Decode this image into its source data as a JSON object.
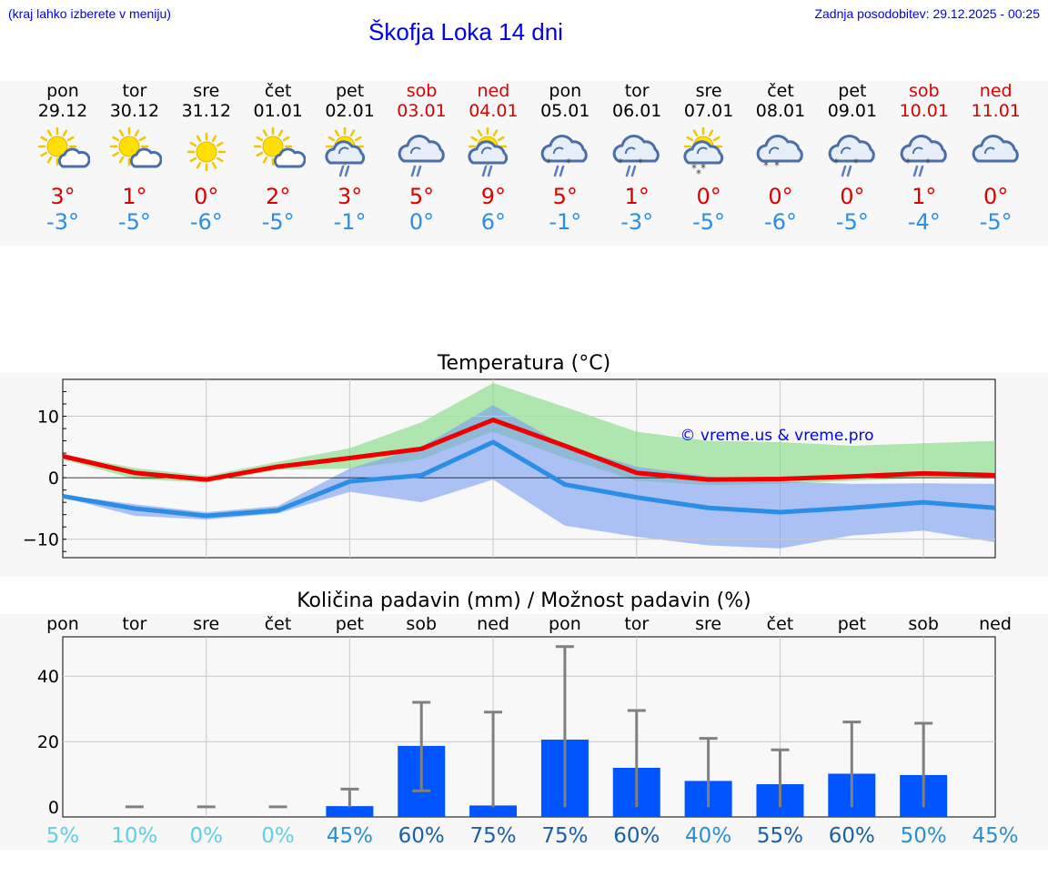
{
  "header": {
    "hint": "(kraj lahko izberete v meniju)",
    "updated": "Zadnja posodobitev: 29.12.2025 - 00:25",
    "title": "Škofja Loka 14 dni"
  },
  "days": [
    {
      "dn": "pon",
      "dt": "29.12",
      "weekend": false,
      "icon": "sun-cloud",
      "tmax": "3°",
      "tmin": "-3°"
    },
    {
      "dn": "tor",
      "dt": "30.12",
      "weekend": false,
      "icon": "sun-cloud",
      "tmax": "1°",
      "tmin": "-5°"
    },
    {
      "dn": "sre",
      "dt": "31.12",
      "weekend": false,
      "icon": "sun",
      "tmax": "0°",
      "tmin": "-6°"
    },
    {
      "dn": "čet",
      "dt": "01.01",
      "weekend": false,
      "icon": "sun-cloud",
      "tmax": "2°",
      "tmin": "-5°"
    },
    {
      "dn": "pet",
      "dt": "02.01",
      "weekend": false,
      "icon": "sun-cloud-rain",
      "tmax": "3°",
      "tmin": "-1°"
    },
    {
      "dn": "sob",
      "dt": "03.01",
      "weekend": true,
      "icon": "cloud-rain",
      "tmax": "5°",
      "tmin": "0°"
    },
    {
      "dn": "ned",
      "dt": "04.01",
      "weekend": true,
      "icon": "sun-cloud-rain",
      "tmax": "9°",
      "tmin": "6°"
    },
    {
      "dn": "pon",
      "dt": "05.01",
      "weekend": false,
      "icon": "cloud-sleet",
      "tmax": "5°",
      "tmin": "-1°"
    },
    {
      "dn": "tor",
      "dt": "06.01",
      "weekend": false,
      "icon": "cloud-sleet",
      "tmax": "1°",
      "tmin": "-3°"
    },
    {
      "dn": "sre",
      "dt": "07.01",
      "weekend": false,
      "icon": "sun-cloud-snow",
      "tmax": "0°",
      "tmin": "-5°"
    },
    {
      "dn": "čet",
      "dt": "08.01",
      "weekend": false,
      "icon": "cloud-snow",
      "tmax": "0°",
      "tmin": "-6°"
    },
    {
      "dn": "pet",
      "dt": "09.01",
      "weekend": false,
      "icon": "cloud-sleet",
      "tmax": "0°",
      "tmin": "-5°"
    },
    {
      "dn": "sob",
      "dt": "10.01",
      "weekend": true,
      "icon": "cloud-sleet",
      "tmax": "1°",
      "tmin": "-4°"
    },
    {
      "dn": "ned",
      "dt": "11.01",
      "weekend": true,
      "icon": "cloud",
      "tmax": "0°",
      "tmin": "-5°"
    }
  ],
  "colors": {
    "max": "#ee0000",
    "min": "#2a8ee6",
    "bar": "#0055ff",
    "err": "#808080",
    "band_green": "#7ed87e",
    "band_blue": "#7a9cf0"
  },
  "chart_data": [
    {
      "type": "line",
      "title": "Temperatura (°C)",
      "x": [
        0,
        1,
        2,
        3,
        4,
        5,
        6,
        7,
        8,
        9,
        10,
        11,
        12,
        13
      ],
      "ylim": [
        -13,
        16
      ],
      "yticks": [
        -10,
        0,
        10
      ],
      "watermark": "© vreme.us & vreme.pro",
      "series": [
        {
          "name": "max",
          "values": [
            3.5,
            0.8,
            -0.3,
            1.8,
            3.2,
            4.7,
            9.4,
            5.2,
            0.8,
            -0.3,
            -0.2,
            0.2,
            0.7,
            0.4
          ]
        },
        {
          "name": "min",
          "values": [
            -3,
            -5,
            -6.2,
            -5.3,
            -0.6,
            0.4,
            5.8,
            -1.1,
            -3.2,
            -4.9,
            -5.6,
            -4.9,
            -4.0,
            -4.9
          ]
        }
      ],
      "bands": [
        {
          "name": "max_range",
          "low": [
            3,
            -0.2,
            -0.8,
            1.3,
            1.5,
            3,
            7.5,
            3.2,
            -0.5,
            -1.2,
            -1.0,
            -0.5,
            0,
            0
          ],
          "high": [
            3.8,
            1.6,
            0.3,
            2.6,
            4.8,
            9,
            15.4,
            11.5,
            7.5,
            6,
            5.8,
            5.2,
            5.6,
            6
          ]
        },
        {
          "name": "min_range",
          "low": [
            -3.2,
            -6.2,
            -6.8,
            -5.8,
            -2.3,
            -4,
            -0.3,
            -7.8,
            -9.6,
            -11,
            -11.5,
            -9.4,
            -8.6,
            -10.5
          ],
          "high": [
            -2.8,
            -4.3,
            -5.6,
            -4.6,
            1.5,
            5,
            11.8,
            5.2,
            1.8,
            0.2,
            -0.6,
            -1.0,
            -0.9,
            -1.0
          ]
        }
      ]
    },
    {
      "type": "bar",
      "title": "Količina padavin (mm) / Možnost padavin (%)",
      "categories": [
        "pon",
        "tor",
        "sre",
        "čet",
        "pet",
        "sob",
        "ned",
        "pon",
        "tor",
        "sre",
        "čet",
        "pet",
        "sob",
        "ned"
      ],
      "ylim": [
        -3,
        52
      ],
      "yticks": [
        0,
        20,
        40
      ],
      "values": [
        0,
        0,
        0,
        0,
        0.3,
        18.7,
        0.5,
        20.6,
        12,
        8,
        7,
        10.2,
        9.8,
        0
      ],
      "err_low": [
        0,
        0,
        0,
        0,
        0,
        5,
        0,
        0,
        0,
        0,
        0,
        0,
        0,
        0
      ],
      "err_high": [
        0,
        0.1,
        0.1,
        0.1,
        5.5,
        32,
        29,
        49,
        29.5,
        21,
        17.5,
        26,
        25.6,
        0
      ],
      "probability": [
        "5%",
        "10%",
        "0%",
        "0%",
        "45%",
        "60%",
        "75%",
        "75%",
        "60%",
        "40%",
        "55%",
        "60%",
        "50%",
        "45%"
      ],
      "prob_colors": [
        "#5cd0e6",
        "#5cd0e6",
        "#5cd0e6",
        "#5cd0e6",
        "#2a8fcf",
        "#1a60a8",
        "#1a60a8",
        "#1a60a8",
        "#1a60a8",
        "#2a8fcf",
        "#1a60a8",
        "#1a60a8",
        "#2a8fcf",
        "#2a8fcf"
      ]
    }
  ]
}
